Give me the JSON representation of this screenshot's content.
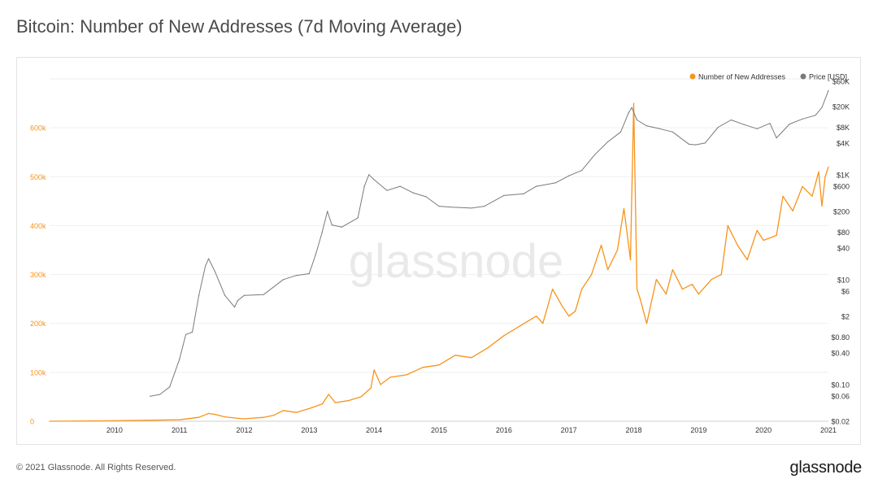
{
  "title": "Bitcoin: Number of New Addresses (7d Moving Average)",
  "footer": {
    "copyright": "© 2021 Glassnode. All Rights Reserved.",
    "brand": "glassnode"
  },
  "watermark": "glassnode",
  "colors": {
    "addresses": "#f7931a",
    "price": "#7a7a7a",
    "axis_left_text": "#f7931a",
    "axis_text": "#333333",
    "grid": "#efefef"
  },
  "chart_data": {
    "type": "line",
    "title": "Bitcoin: Number of New Addresses (7d Moving Average)",
    "legend_position": "top-right",
    "legend": [
      "Number of New Addresses",
      "Price [USD]"
    ],
    "x_ticks": [
      "2010",
      "2011",
      "2012",
      "2013",
      "2014",
      "2015",
      "2016",
      "2017",
      "2018",
      "2019",
      "2020",
      "2021"
    ],
    "x_range": [
      2009.0,
      2021.0
    ],
    "y_left": {
      "ticks": [
        0,
        100000,
        200000,
        300000,
        400000,
        500000,
        600000
      ],
      "tick_labels": [
        "0",
        "100k",
        "200k",
        "300k",
        "400k",
        "500k",
        "600k"
      ],
      "range": [
        0,
        700000
      ]
    },
    "y_right": {
      "scale": "log",
      "ticks": [
        0.02,
        0.06,
        0.1,
        0.4,
        0.8,
        2,
        6,
        10,
        40,
        80,
        200,
        600,
        1000,
        4000,
        8000,
        20000,
        60000
      ],
      "tick_labels": [
        "$0.02",
        "$0.06",
        "$0.10",
        "$0.40",
        "$0.80",
        "$2",
        "$6",
        "$10",
        "$40",
        "$80",
        "$200",
        "$600",
        "$1K",
        "$4K",
        "$8K",
        "$20K",
        "$60K"
      ],
      "range": [
        0.02,
        60000
      ]
    },
    "grid": true,
    "series": [
      {
        "name": "Number of New Addresses",
        "axis": "left",
        "x": [
          2009.0,
          2010.0,
          2010.5,
          2011.0,
          2011.3,
          2011.45,
          2011.55,
          2011.7,
          2011.9,
          2012.0,
          2012.3,
          2012.45,
          2012.6,
          2012.8,
          2013.0,
          2013.2,
          2013.3,
          2013.4,
          2013.6,
          2013.8,
          2013.95,
          2014.0,
          2014.1,
          2014.25,
          2014.5,
          2014.75,
          2015.0,
          2015.25,
          2015.5,
          2015.75,
          2016.0,
          2016.25,
          2016.5,
          2016.6,
          2016.75,
          2016.9,
          2017.0,
          2017.1,
          2017.2,
          2017.35,
          2017.5,
          2017.6,
          2017.75,
          2017.85,
          2017.95,
          2018.0,
          2018.05,
          2018.1,
          2018.2,
          2018.35,
          2018.5,
          2018.6,
          2018.75,
          2018.9,
          2019.0,
          2019.2,
          2019.35,
          2019.45,
          2019.6,
          2019.75,
          2019.9,
          2020.0,
          2020.2,
          2020.3,
          2020.45,
          2020.6,
          2020.75,
          2020.85,
          2020.9,
          2020.95,
          2021.0
        ],
        "values": [
          0,
          1000,
          2000,
          3000,
          8000,
          16000,
          14000,
          9000,
          6000,
          5000,
          8000,
          12000,
          22000,
          18000,
          26000,
          35000,
          55000,
          38000,
          42000,
          50000,
          68000,
          105000,
          75000,
          90000,
          95000,
          110000,
          115000,
          135000,
          130000,
          150000,
          175000,
          195000,
          215000,
          200000,
          270000,
          235000,
          215000,
          225000,
          270000,
          300000,
          360000,
          310000,
          350000,
          435000,
          330000,
          650000,
          270000,
          250000,
          200000,
          290000,
          260000,
          310000,
          270000,
          280000,
          260000,
          290000,
          300000,
          400000,
          360000,
          330000,
          390000,
          370000,
          380000,
          460000,
          430000,
          480000,
          460000,
          510000,
          440000,
          500000,
          520000
        ]
      },
      {
        "name": "Price [USD]",
        "axis": "right",
        "x": [
          2010.55,
          2010.7,
          2010.85,
          2011.0,
          2011.1,
          2011.2,
          2011.3,
          2011.4,
          2011.45,
          2011.55,
          2011.7,
          2011.85,
          2011.9,
          2012.0,
          2012.3,
          2012.6,
          2012.8,
          2013.0,
          2013.1,
          2013.2,
          2013.28,
          2013.35,
          2013.5,
          2013.75,
          2013.85,
          2013.92,
          2014.0,
          2014.2,
          2014.4,
          2014.6,
          2014.8,
          2015.0,
          2015.2,
          2015.5,
          2015.7,
          2016.0,
          2016.3,
          2016.5,
          2016.8,
          2017.0,
          2017.2,
          2017.4,
          2017.6,
          2017.8,
          2017.92,
          2017.97,
          2018.05,
          2018.2,
          2018.4,
          2018.6,
          2018.85,
          2018.95,
          2019.1,
          2019.3,
          2019.5,
          2019.7,
          2019.9,
          2020.1,
          2020.2,
          2020.4,
          2020.6,
          2020.8,
          2020.9,
          2021.0
        ],
        "values": [
          0.06,
          0.065,
          0.09,
          0.3,
          0.9,
          1.0,
          5,
          18,
          25,
          14,
          5,
          3,
          4,
          5,
          5.2,
          10,
          12,
          13,
          30,
          80,
          200,
          110,
          100,
          150,
          600,
          1000,
          800,
          500,
          600,
          450,
          380,
          250,
          240,
          230,
          250,
          400,
          430,
          600,
          700,
          950,
          1200,
          2400,
          4200,
          6500,
          15000,
          19000,
          11000,
          8500,
          7500,
          6500,
          3800,
          3700,
          4000,
          8000,
          11000,
          9000,
          7500,
          9500,
          5000,
          9200,
          11500,
          13500,
          19000,
          40000
        ]
      }
    ]
  }
}
